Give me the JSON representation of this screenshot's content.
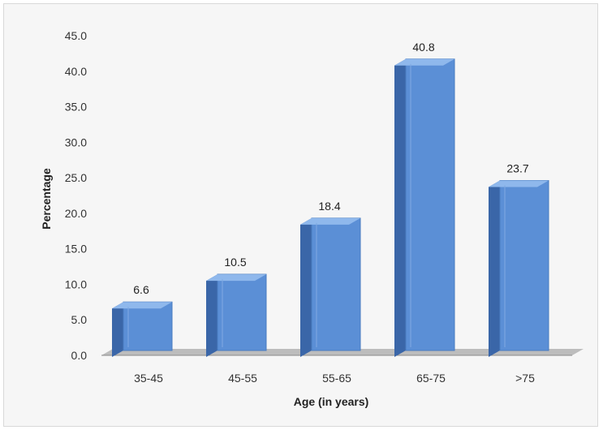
{
  "chart_data": {
    "type": "bar",
    "style": "3d-column",
    "categories": [
      "35-45",
      "45-55",
      "55-65",
      "65-75",
      ">75"
    ],
    "values": [
      6.6,
      10.5,
      18.4,
      40.8,
      23.7
    ],
    "data_labels": [
      "6.6",
      "10.5",
      "18.4",
      "40.8",
      "23.7"
    ],
    "yticks": [
      "0.0",
      "5.0",
      "10.0",
      "15.0",
      "20.0",
      "25.0",
      "30.0",
      "35.0",
      "40.0",
      "45.0"
    ],
    "title": "",
    "xlabel": "Age (in years)",
    "ylabel": "Percentage",
    "ylim": [
      0,
      45
    ],
    "grid": false,
    "legend": "none",
    "colors": {
      "bar_front": "#5b8fd6",
      "bar_side": "#3a66a8",
      "bar_top": "#8fb8ec",
      "floor": "#bdbdbd",
      "background": "#f6f6f6"
    }
  }
}
